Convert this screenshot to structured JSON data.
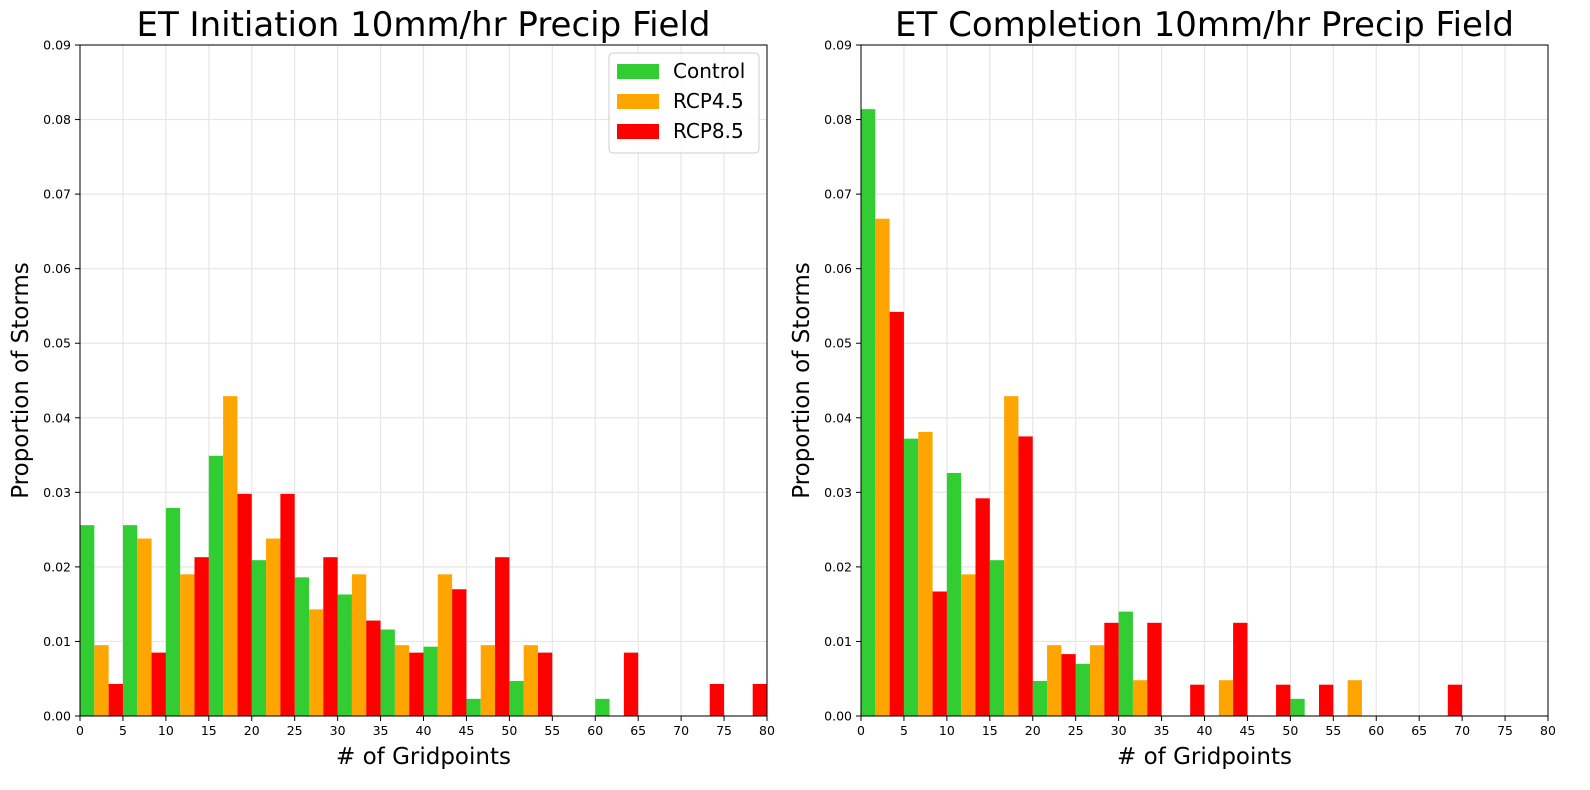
{
  "chart_data": [
    {
      "type": "bar",
      "title": "ET Initiation 10mm/hr Precip Field",
      "xlabel": "# of Gridpoints",
      "ylabel": "Proportion of Storms",
      "xlim": [
        0,
        80
      ],
      "ylim": [
        0,
        0.09
      ],
      "xticks": [
        "0",
        "5",
        "10",
        "15",
        "20",
        "25",
        "30",
        "35",
        "40",
        "45",
        "50",
        "55",
        "60",
        "65",
        "70",
        "75",
        "80"
      ],
      "yticks": [
        "0.00",
        "0.01",
        "0.02",
        "0.03",
        "0.04",
        "0.05",
        "0.06",
        "0.07",
        "0.08",
        "0.09"
      ],
      "grid": true,
      "legend": "top-right",
      "bin_edges": [
        0,
        5,
        10,
        15,
        20,
        25,
        30,
        35,
        40,
        45,
        50,
        55,
        60,
        65,
        70,
        75,
        80
      ],
      "series": [
        {
          "name": "Control",
          "color": "#32cd32",
          "values": [
            0.0256,
            0.0256,
            0.0279,
            0.0349,
            0.0209,
            0.0186,
            0.0163,
            0.0116,
            0.0093,
            0.0023,
            0.0047,
            0,
            0.0023,
            0,
            0,
            0
          ]
        },
        {
          "name": "RCP4.5",
          "color": "#ffa500",
          "values": [
            0.0095,
            0.0238,
            0.019,
            0.0429,
            0.0238,
            0.0143,
            0.019,
            0.0095,
            0.019,
            0.0095,
            0.0095,
            0,
            0,
            0,
            0,
            0
          ]
        },
        {
          "name": "RCP8.5",
          "color": "#ff0000",
          "values": [
            0.0043,
            0.0085,
            0.0213,
            0.0298,
            0.0298,
            0.0213,
            0.0128,
            0.0085,
            0.017,
            0.0213,
            0.0085,
            0,
            0.0085,
            0,
            0.0043,
            0.0043
          ]
        }
      ]
    },
    {
      "type": "bar",
      "title": "ET Completion 10mm/hr Precip Field",
      "xlabel": "# of Gridpoints",
      "ylabel": "Proportion of Storms",
      "xlim": [
        0,
        80
      ],
      "ylim": [
        0,
        0.09
      ],
      "xticks": [
        "0",
        "5",
        "10",
        "15",
        "20",
        "25",
        "30",
        "35",
        "40",
        "45",
        "50",
        "55",
        "60",
        "65",
        "70",
        "75",
        "80"
      ],
      "yticks": [
        "0.00",
        "0.01",
        "0.02",
        "0.03",
        "0.04",
        "0.05",
        "0.06",
        "0.07",
        "0.08",
        "0.09"
      ],
      "grid": true,
      "bin_edges": [
        0,
        5,
        10,
        15,
        20,
        25,
        30,
        35,
        40,
        45,
        50,
        55,
        60,
        65,
        70,
        75,
        80
      ],
      "series": [
        {
          "name": "Control",
          "color": "#32cd32",
          "values": [
            0.0814,
            0.0372,
            0.0326,
            0.0209,
            0.0047,
            0.007,
            0.014,
            0,
            0,
            0,
            0.0023,
            0,
            0,
            0,
            0,
            0
          ]
        },
        {
          "name": "RCP4.5",
          "color": "#ffa500",
          "values": [
            0.0667,
            0.0381,
            0.019,
            0.0429,
            0.0095,
            0.0095,
            0.0048,
            0,
            0.0048,
            0,
            0,
            0.0048,
            0,
            0,
            0,
            0
          ]
        },
        {
          "name": "RCP8.5",
          "color": "#ff0000",
          "values": [
            0.0542,
            0.0167,
            0.0292,
            0.0375,
            0.0083,
            0.0125,
            0.0125,
            0.0042,
            0.0125,
            0.0042,
            0.0042,
            0,
            0,
            0.0042,
            0,
            0
          ]
        }
      ]
    }
  ]
}
